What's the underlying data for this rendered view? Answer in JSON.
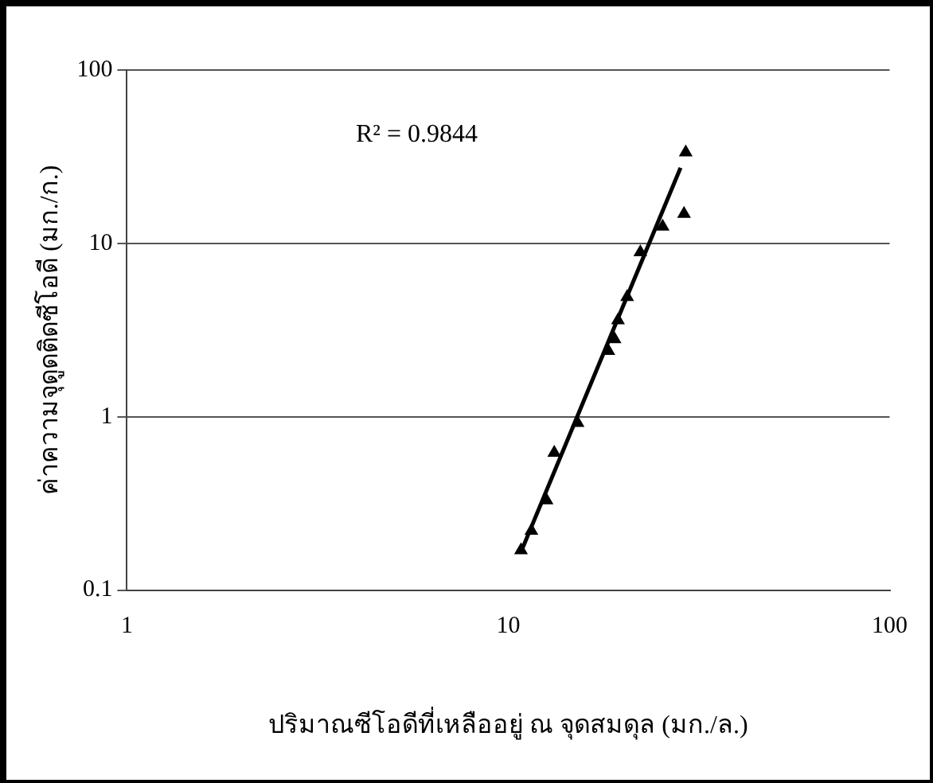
{
  "chart_data": {
    "type": "scatter",
    "xlabel": "ปริมาณซีโอดีที่เหลืออยู่ ณ จุดสมดุล (มก./ล.)",
    "ylabel": "ค่าความจุดูดติดซีโอดี (มก./ก.)",
    "annotations": [
      "R² = 0.9844"
    ],
    "log": "xy",
    "xlim": [
      1,
      100
    ],
    "xticks": [
      1,
      10,
      100
    ],
    "ylim": [
      0.1,
      100
    ],
    "yticks": [
      0.1,
      1,
      10,
      100
    ],
    "grid": "y",
    "legend": false,
    "marker": "triangle",
    "series": [
      {
        "color": "#000000",
        "x": [
          10.8,
          11.5,
          12.6,
          13.2,
          15.2,
          18.3,
          19.0,
          19.4,
          20.5,
          22.2,
          25.4,
          28.9,
          29.2
        ],
        "values": [
          0.17,
          0.22,
          0.33,
          0.62,
          0.92,
          2.4,
          2.8,
          3.6,
          4.9,
          8.9,
          12.5,
          14.8,
          33.5
        ]
      },
      {
        "type": "line",
        "color": "#000000",
        "marker": "none",
        "x": [
          10.8,
          28.3
        ],
        "values": [
          0.166,
          27.3
        ]
      }
    ]
  }
}
